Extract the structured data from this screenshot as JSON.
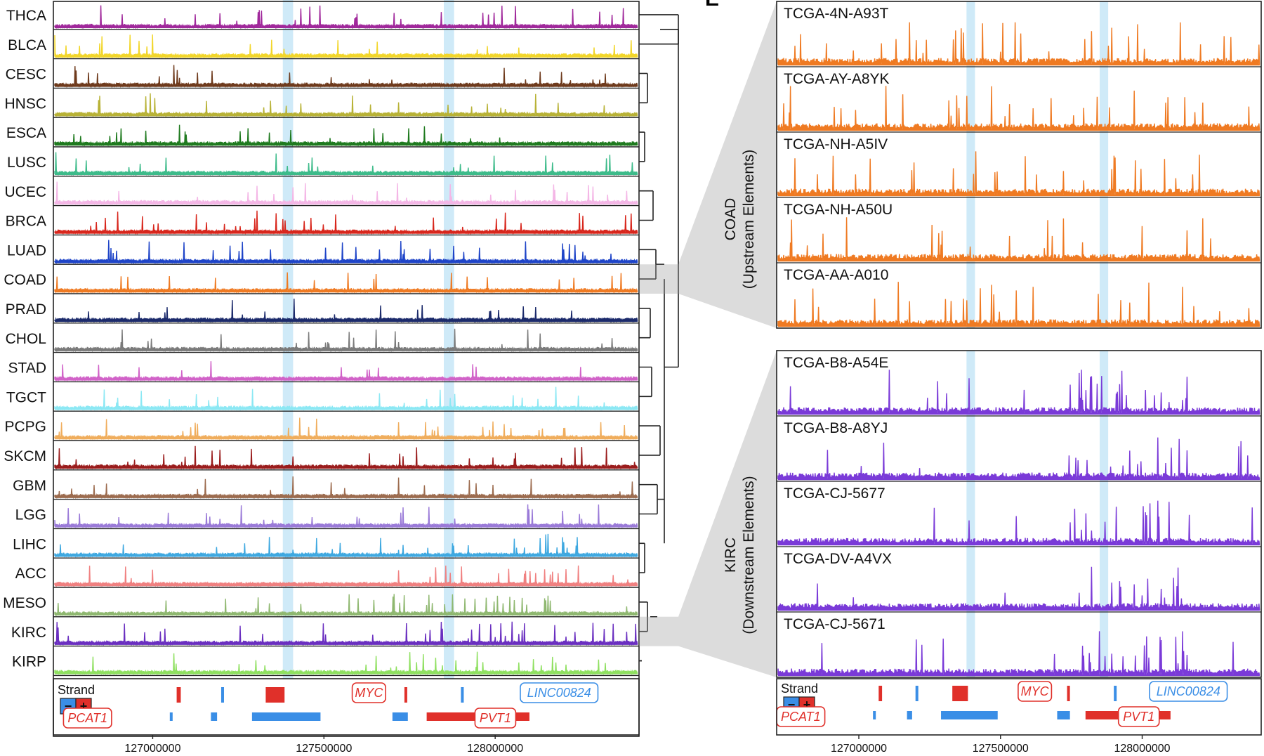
{
  "figure": {
    "panel_letter": "E",
    "left_panel": {
      "tracks": [
        {
          "name": "THCA",
          "color": "#a0289b"
        },
        {
          "name": "BLCA",
          "color": "#f2d62a"
        },
        {
          "name": "CESC",
          "color": "#6e3a1c"
        },
        {
          "name": "HNSC",
          "color": "#b8b236"
        },
        {
          "name": "ESCA",
          "color": "#1f7a1f"
        },
        {
          "name": "LUSC",
          "color": "#3dbb8a"
        },
        {
          "name": "UCEC",
          "color": "#f4b6e6"
        },
        {
          "name": "BRCA",
          "color": "#d8261c"
        },
        {
          "name": "LUAD",
          "color": "#1e44c8"
        },
        {
          "name": "COAD",
          "color": "#ef7a22"
        },
        {
          "name": "PRAD",
          "color": "#1b2a6b"
        },
        {
          "name": "CHOL",
          "color": "#7a7a7a"
        },
        {
          "name": "STAD",
          "color": "#d162c8"
        },
        {
          "name": "TGCT",
          "color": "#8be8f4"
        },
        {
          "name": "PCPG",
          "color": "#f0ad5c"
        },
        {
          "name": "SKCM",
          "color": "#9a1c1c"
        },
        {
          "name": "GBM",
          "color": "#9c6b4e"
        },
        {
          "name": "LGG",
          "color": "#9a7ad8"
        },
        {
          "name": "LIHC",
          "color": "#3ea8e0"
        },
        {
          "name": "ACC",
          "color": "#f08080"
        },
        {
          "name": "MESO",
          "color": "#8fb870"
        },
        {
          "name": "KIRC",
          "color": "#6a2fc0"
        },
        {
          "name": "KIRP",
          "color": "#8fe060"
        }
      ]
    },
    "upper_right_panel": {
      "group_label": "COAD",
      "group_sublabel": "(Upstream Elements)",
      "color": "#ef7a22",
      "samples": [
        "TCGA-4N-A93T",
        "TCGA-AY-A8YK",
        "TCGA-NH-A5IV",
        "TCGA-NH-A50U",
        "TCGA-AA-A010"
      ]
    },
    "lower_right_panel": {
      "group_label": "KIRC",
      "group_sublabel": "(Downstream Elements)",
      "color": "#7a3ad8",
      "samples": [
        "TCGA-B8-A54E",
        "TCGA-B8-A8YJ",
        "TCGA-CJ-5677",
        "TCGA-DV-A4VX",
        "TCGA-CJ-5671"
      ]
    },
    "gene_track": {
      "strand_label": "Strand",
      "minus_symbol": "−",
      "plus_symbol": "+",
      "minus_color": "#3a8ee6",
      "plus_color": "#e0302a",
      "genes": [
        {
          "name": "MYC",
          "strand": "+"
        },
        {
          "name": "LINC00824",
          "strand": "-"
        },
        {
          "name": "PCAT1",
          "strand": "+"
        },
        {
          "name": "PVT1",
          "strand": "+"
        }
      ]
    },
    "highlight_color": "#bfe3f5"
  },
  "chart_data": {
    "type": "area",
    "xlabel": "",
    "ylabel": "",
    "xlim": [
      126710000,
      128420000
    ],
    "x_ticks": [
      127000000,
      127500000,
      128000000
    ],
    "x_tick_labels": [
      "127000000",
      "127500000",
      "128000000"
    ],
    "highlight_regions": [
      [
        127380000,
        127410000
      ],
      [
        127850000,
        127880000
      ]
    ],
    "series_left": [
      "THCA",
      "BLCA",
      "CESC",
      "HNSC",
      "ESCA",
      "LUSC",
      "UCEC",
      "BRCA",
      "LUAD",
      "COAD",
      "PRAD",
      "CHOL",
      "STAD",
      "TGCT",
      "PCPG",
      "SKCM",
      "GBM",
      "LGG",
      "LIHC",
      "ACC",
      "MESO",
      "KIRC",
      "KIRP"
    ],
    "series_right_upper": [
      "TCGA-4N-A93T",
      "TCGA-AY-A8YK",
      "TCGA-NH-A5IV",
      "TCGA-NH-A50U",
      "TCGA-AA-A010"
    ],
    "series_right_lower": [
      "TCGA-B8-A54E",
      "TCGA-B8-A8YJ",
      "TCGA-CJ-5677",
      "TCGA-DV-A4VX",
      "TCGA-CJ-5671"
    ],
    "gene_models": [
      {
        "name": "PCAT1",
        "strand": "+",
        "start": 126890000,
        "end": 127080000
      },
      {
        "name": "MYC",
        "strand": "+",
        "start": 127735000,
        "end": 127742000
      },
      {
        "name": "PVT1",
        "strand": "+",
        "start": 127795000,
        "end": 128100000
      },
      {
        "name": "LINC00824",
        "strand": "-",
        "start": 128300000,
        "end": 128420000
      }
    ]
  }
}
